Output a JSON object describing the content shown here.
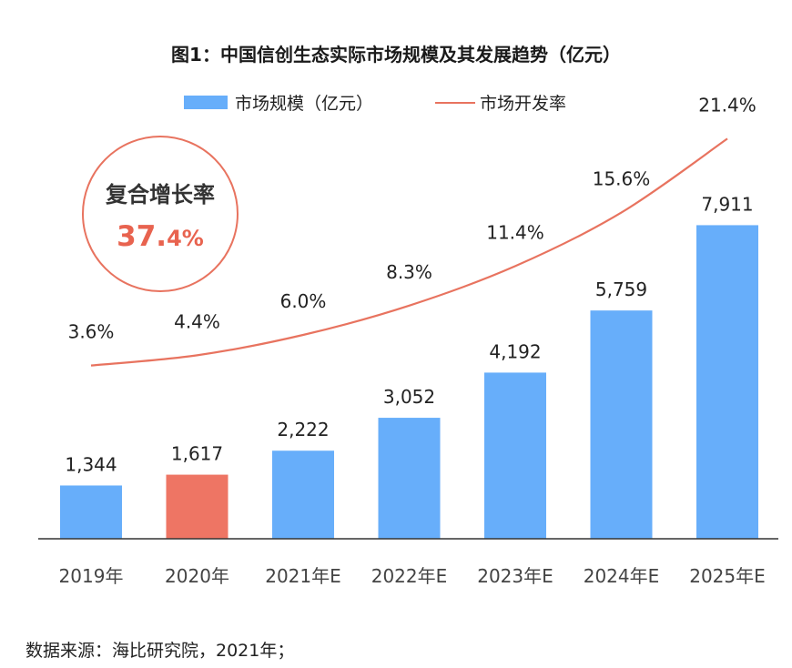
{
  "chart_data": {
    "type": "bar",
    "title": "图1：中国信创生态实际市场规模及其发展趋势（亿元）",
    "categories": [
      "2019年",
      "2020年",
      "2021年E",
      "2022年E",
      "2023年E",
      "2024年E",
      "2025年E"
    ],
    "series": [
      {
        "name": "市场规模（亿元）",
        "type": "bar",
        "values": [
          1344,
          1617,
          2222,
          3052,
          4192,
          5759,
          7911
        ],
        "value_labels": [
          "1,344",
          "1,617",
          "2,222",
          "3,052",
          "4,192",
          "5,759",
          "7,911"
        ],
        "highlight_index": 1
      },
      {
        "name": "市场开发率",
        "type": "line",
        "values": [
          3.6,
          4.4,
          6.0,
          8.3,
          11.4,
          15.6,
          21.4
        ],
        "value_labels": [
          "3.6%",
          "4.4%",
          "6.0%",
          "8.3%",
          "11.4%",
          "15.6%",
          "21.4%"
        ]
      }
    ],
    "bar_ylim": [
      0,
      9000
    ],
    "line_ylim": [
      0,
      23
    ],
    "legend_position": "top-center",
    "annotation": {
      "label": "复合增长率",
      "value_main": "37.",
      "value_tail": "4%"
    },
    "grid": false
  },
  "source": "数据来源：海比研究院，2021年；",
  "colors": {
    "bar": "#67aefa",
    "bar_highlight": "#ee7564",
    "line": "#e8735f",
    "circle": "#e8735f",
    "axis": "#333333"
  }
}
